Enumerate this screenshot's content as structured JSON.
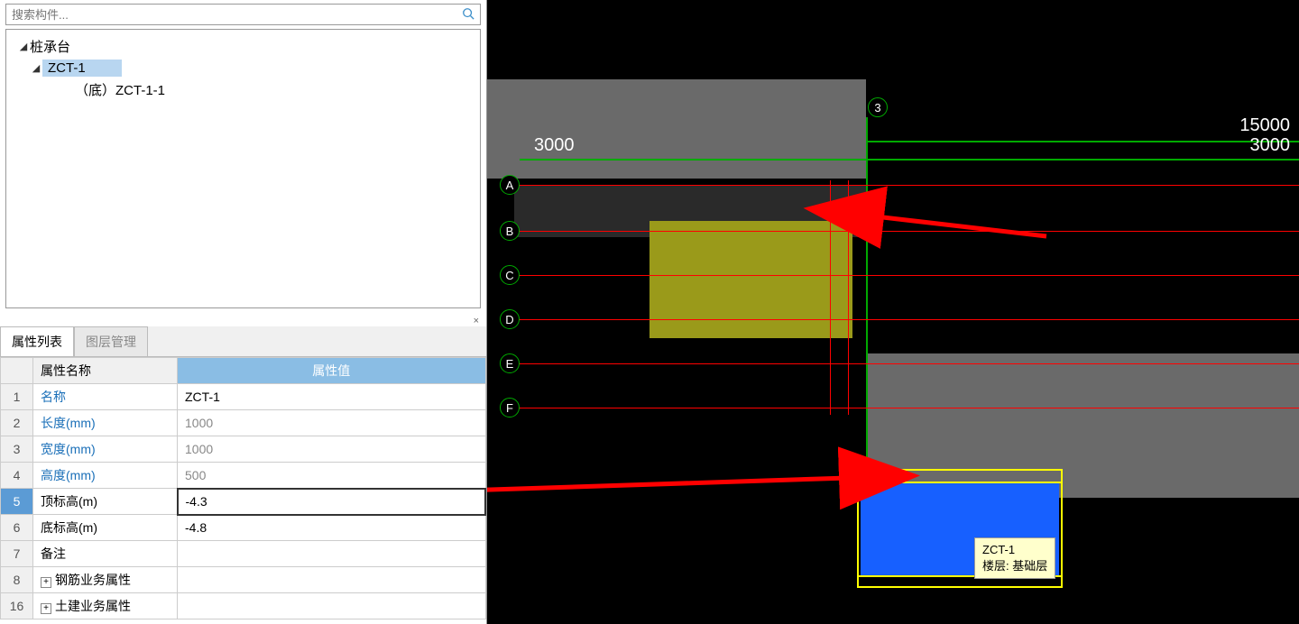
{
  "search": {
    "placeholder": "搜索构件..."
  },
  "tree": {
    "root": {
      "label": "桩承台"
    },
    "item1": {
      "label": "ZCT-1"
    },
    "item2": {
      "label": "（底）ZCT-1-1"
    }
  },
  "tabs": {
    "props": "属性列表",
    "layers": "图层管理"
  },
  "prop_header": {
    "name": "属性名称",
    "value": "属性值"
  },
  "props": [
    {
      "num": "1",
      "name": "名称",
      "value": "ZCT-1",
      "link": true
    },
    {
      "num": "2",
      "name": "长度(mm)",
      "value": "1000",
      "link": true,
      "grey": true
    },
    {
      "num": "3",
      "name": "宽度(mm)",
      "value": "1000",
      "link": true,
      "grey": true
    },
    {
      "num": "4",
      "name": "高度(mm)",
      "value": "500",
      "link": true,
      "grey": true
    },
    {
      "num": "5",
      "name": "顶标高(m)",
      "value": "-4.3",
      "link": false,
      "selected": true,
      "editing": true
    },
    {
      "num": "6",
      "name": "底标高(m)",
      "value": "-4.8",
      "link": false
    },
    {
      "num": "7",
      "name": "备注",
      "value": "",
      "link": false
    },
    {
      "num": "8",
      "name": "钢筋业务属性",
      "value": "",
      "link": false,
      "expand": true
    },
    {
      "num": "16",
      "name": "土建业务属性",
      "value": "",
      "link": false,
      "expand": true
    }
  ],
  "viewport": {
    "background": "#000000",
    "grid_green": "#00aa00",
    "grid_red": "#ff0000",
    "dims": {
      "d3000_left": "3000",
      "d15000": "15000",
      "d3000_right": "3000"
    },
    "axes_top": [
      "3"
    ],
    "axes_left": [
      "A",
      "B",
      "C",
      "D",
      "E",
      "F"
    ],
    "tooltip": {
      "name": "ZCT-1",
      "floor_label": "楼层:",
      "floor": "基础层"
    },
    "colors": {
      "block_grey": "#6a6a6a",
      "block_dark": "#2a2a2a",
      "block_yellow": "#9a9a1a",
      "selected_fill": "#1760ff",
      "selected_border": "#ffff00",
      "tooltip_bg": "#ffffcc",
      "arrow": "#ff0000"
    }
  }
}
